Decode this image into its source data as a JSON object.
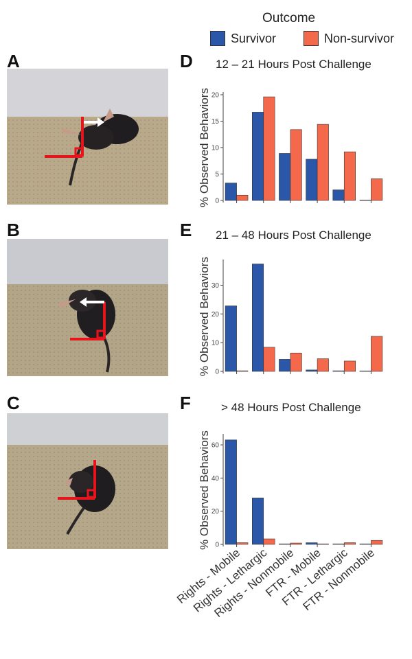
{
  "panel_letters": {
    "a": "A",
    "b": "B",
    "c": "C",
    "d": "D",
    "e": "E",
    "f": "F"
  },
  "colors": {
    "survivor": "#2a57a8",
    "non_survivor": "#f4684c",
    "bar_outline": "#333333",
    "axis": "#444444",
    "marker_red": "#e8141c",
    "arrow_white": "#ffffff"
  },
  "legend": {
    "title": "Outcome",
    "items": [
      {
        "label": "Survivor",
        "color": "#2a57a8"
      },
      {
        "label": "Non-survivor",
        "color": "#f4684c"
      }
    ]
  },
  "photos": [
    {
      "panel": "A",
      "subject": "mouse-righting-reflex",
      "markers": [
        "red-right-angle",
        "white-arrow"
      ]
    },
    {
      "panel": "B",
      "subject": "mouse-righting-reflex",
      "markers": [
        "red-right-angle",
        "white-arrow"
      ]
    },
    {
      "panel": "C",
      "subject": "mouse-righting-reflex",
      "markers": [
        "red-right-angle"
      ]
    }
  ],
  "chart_data": [
    {
      "type": "bar",
      "panel": "D",
      "title": "12 – 21 Hours Post Challenge",
      "ylabel": "% Observed Behaviors",
      "xlabel": "",
      "ylim": [
        0,
        20
      ],
      "yticks": [
        0,
        5,
        10,
        15,
        20
      ],
      "grid": false,
      "categories": [
        "Rights - Mobile",
        "Rights - Lethargic",
        "Rights - Nonmobile",
        "FTR - Mobile",
        "FTR - Lethargic",
        "FTR - Nonmobile"
      ],
      "series": [
        {
          "name": "Survivor",
          "values": [
            3.3,
            16.7,
            8.9,
            7.8,
            2.0,
            0.0
          ]
        },
        {
          "name": "Non-survivor",
          "values": [
            1.0,
            19.6,
            13.4,
            14.4,
            9.2,
            4.1
          ]
        }
      ]
    },
    {
      "type": "bar",
      "panel": "E",
      "title": "21 – 48 Hours Post Challenge",
      "ylabel": "% Observed Behaviors",
      "xlabel": "",
      "ylim": [
        0,
        38
      ],
      "yticks": [
        0,
        10,
        20,
        30
      ],
      "grid": false,
      "categories": [
        "Rights - Mobile",
        "Rights - Lethargic",
        "Rights - Nonmobile",
        "FTR - Mobile",
        "FTR - Lethargic",
        "FTR - Nonmobile"
      ],
      "series": [
        {
          "name": "Survivor",
          "values": [
            22.8,
            37.4,
            4.2,
            0.5,
            0.2,
            0.0
          ]
        },
        {
          "name": "Non-survivor",
          "values": [
            0.2,
            8.4,
            6.4,
            4.4,
            3.6,
            12.2
          ]
        }
      ]
    },
    {
      "type": "bar",
      "panel": "F",
      "title": "> 48 Hours Post Challenge",
      "ylabel": "% Observed Behaviors",
      "xlabel": "",
      "ylim": [
        0,
        65
      ],
      "yticks": [
        0,
        20,
        40,
        60
      ],
      "grid": false,
      "categories": [
        "Rights - Mobile",
        "Rights - Lethargic",
        "Rights - Nonmobile",
        "FTR - Mobile",
        "FTR - Lethargic",
        "FTR - Nonmobile"
      ],
      "series": [
        {
          "name": "Survivor",
          "values": [
            63.0,
            28.0,
            0.3,
            1.0,
            0.3,
            0.3
          ]
        },
        {
          "name": "Non-survivor",
          "values": [
            1.0,
            3.3,
            0.8,
            0.3,
            1.0,
            2.4
          ]
        }
      ]
    }
  ]
}
